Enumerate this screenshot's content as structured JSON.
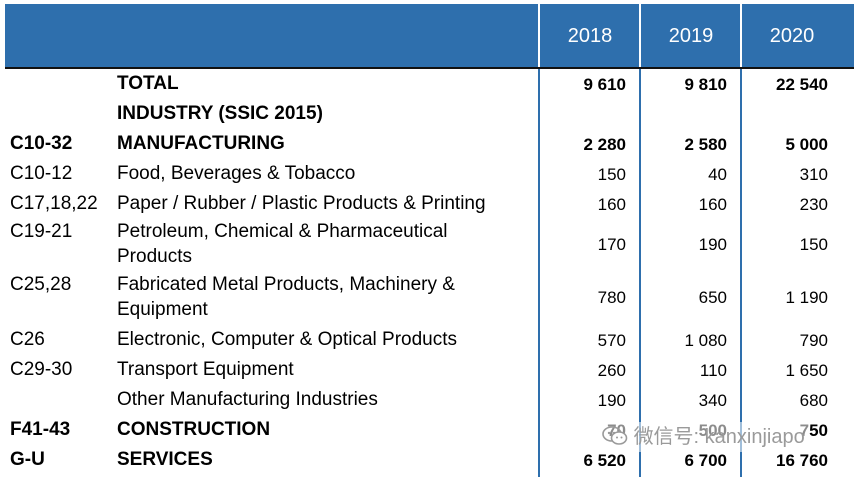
{
  "header": {
    "years": [
      "2018",
      "2019",
      "2020"
    ]
  },
  "rows": {
    "total": {
      "code": "",
      "label": "TOTAL",
      "v": [
        "9 610",
        "9 810",
        "22 540"
      ]
    },
    "industry": {
      "code": "",
      "label": "INDUSTRY (SSIC 2015)",
      "v": [
        "",
        "",
        ""
      ]
    },
    "mfg": {
      "code": "C10-32",
      "label": "MANUFACTURING",
      "v": [
        "2 280",
        "2 580",
        "5 000"
      ]
    },
    "food": {
      "code": "C10-12",
      "label": "Food, Beverages & Tobacco",
      "v": [
        "150",
        "40",
        "310"
      ]
    },
    "paper": {
      "code": "C17,18,22",
      "label": "Paper / Rubber / Plastic Products & Printing",
      "v": [
        "160",
        "160",
        "230"
      ]
    },
    "petro": {
      "code": "C19-21",
      "label": "Petroleum, Chemical & Pharmaceutical Products",
      "v": [
        "170",
        "190",
        "150"
      ]
    },
    "metal": {
      "code": "C25,28",
      "label": "Fabricated Metal Products, Machinery & Equipment",
      "v": [
        "780",
        "650",
        "1 190"
      ]
    },
    "elec": {
      "code": "C26",
      "label": "Electronic, Computer & Optical Products",
      "v": [
        "570",
        "1 080",
        "790"
      ]
    },
    "transport": {
      "code": "C29-30",
      "label": "Transport Equipment",
      "v": [
        "260",
        "110",
        "1 650"
      ]
    },
    "other": {
      "code": "",
      "label": "Other Manufacturing Industries",
      "v": [
        "190",
        "340",
        "680"
      ]
    },
    "construct": {
      "code": "F41-43",
      "label": "CONSTRUCTION",
      "v": [
        "70",
        "500",
        "750"
      ]
    },
    "services": {
      "code": "G-U",
      "label": "SERVICES",
      "v": [
        "6 520",
        "6 700",
        "16 760"
      ]
    }
  },
  "watermark": {
    "text": "微信号: kanxinjiapo",
    "icon": "wechat-icon"
  }
}
